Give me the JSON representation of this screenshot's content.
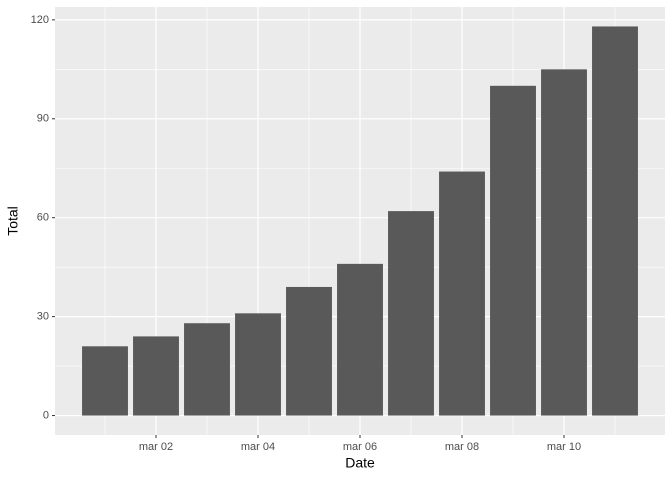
{
  "chart_data": {
    "type": "bar",
    "x_label": "Date",
    "y_label": "Total",
    "categories": [
      null,
      "mar 02",
      null,
      "mar 04",
      null,
      "mar 06",
      null,
      "mar 08",
      null,
      "mar 10",
      null
    ],
    "values": [
      21,
      24,
      28,
      31,
      39,
      46,
      62,
      74,
      100,
      105,
      118
    ],
    "color": "#595959",
    "ylim": [
      -5.9,
      123.9
    ],
    "yticks": [
      0,
      30,
      60,
      90,
      120
    ],
    "grid": true
  }
}
